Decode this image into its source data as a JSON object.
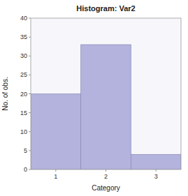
{
  "chart_data": {
    "type": "bar",
    "title": "Histogram: Var2",
    "xlabel": "Category",
    "ylabel": "No. of obs.",
    "x": [
      1,
      2,
      3
    ],
    "values": [
      20,
      33,
      4
    ],
    "color": "#b3b3dd",
    "xlim": [
      0.5,
      3.5
    ],
    "xticks": [
      1,
      2,
      3
    ],
    "ylim": [
      0,
      40
    ],
    "yticks": [
      0,
      5,
      10,
      15,
      20,
      25,
      30,
      35,
      40
    ],
    "grid": false
  }
}
